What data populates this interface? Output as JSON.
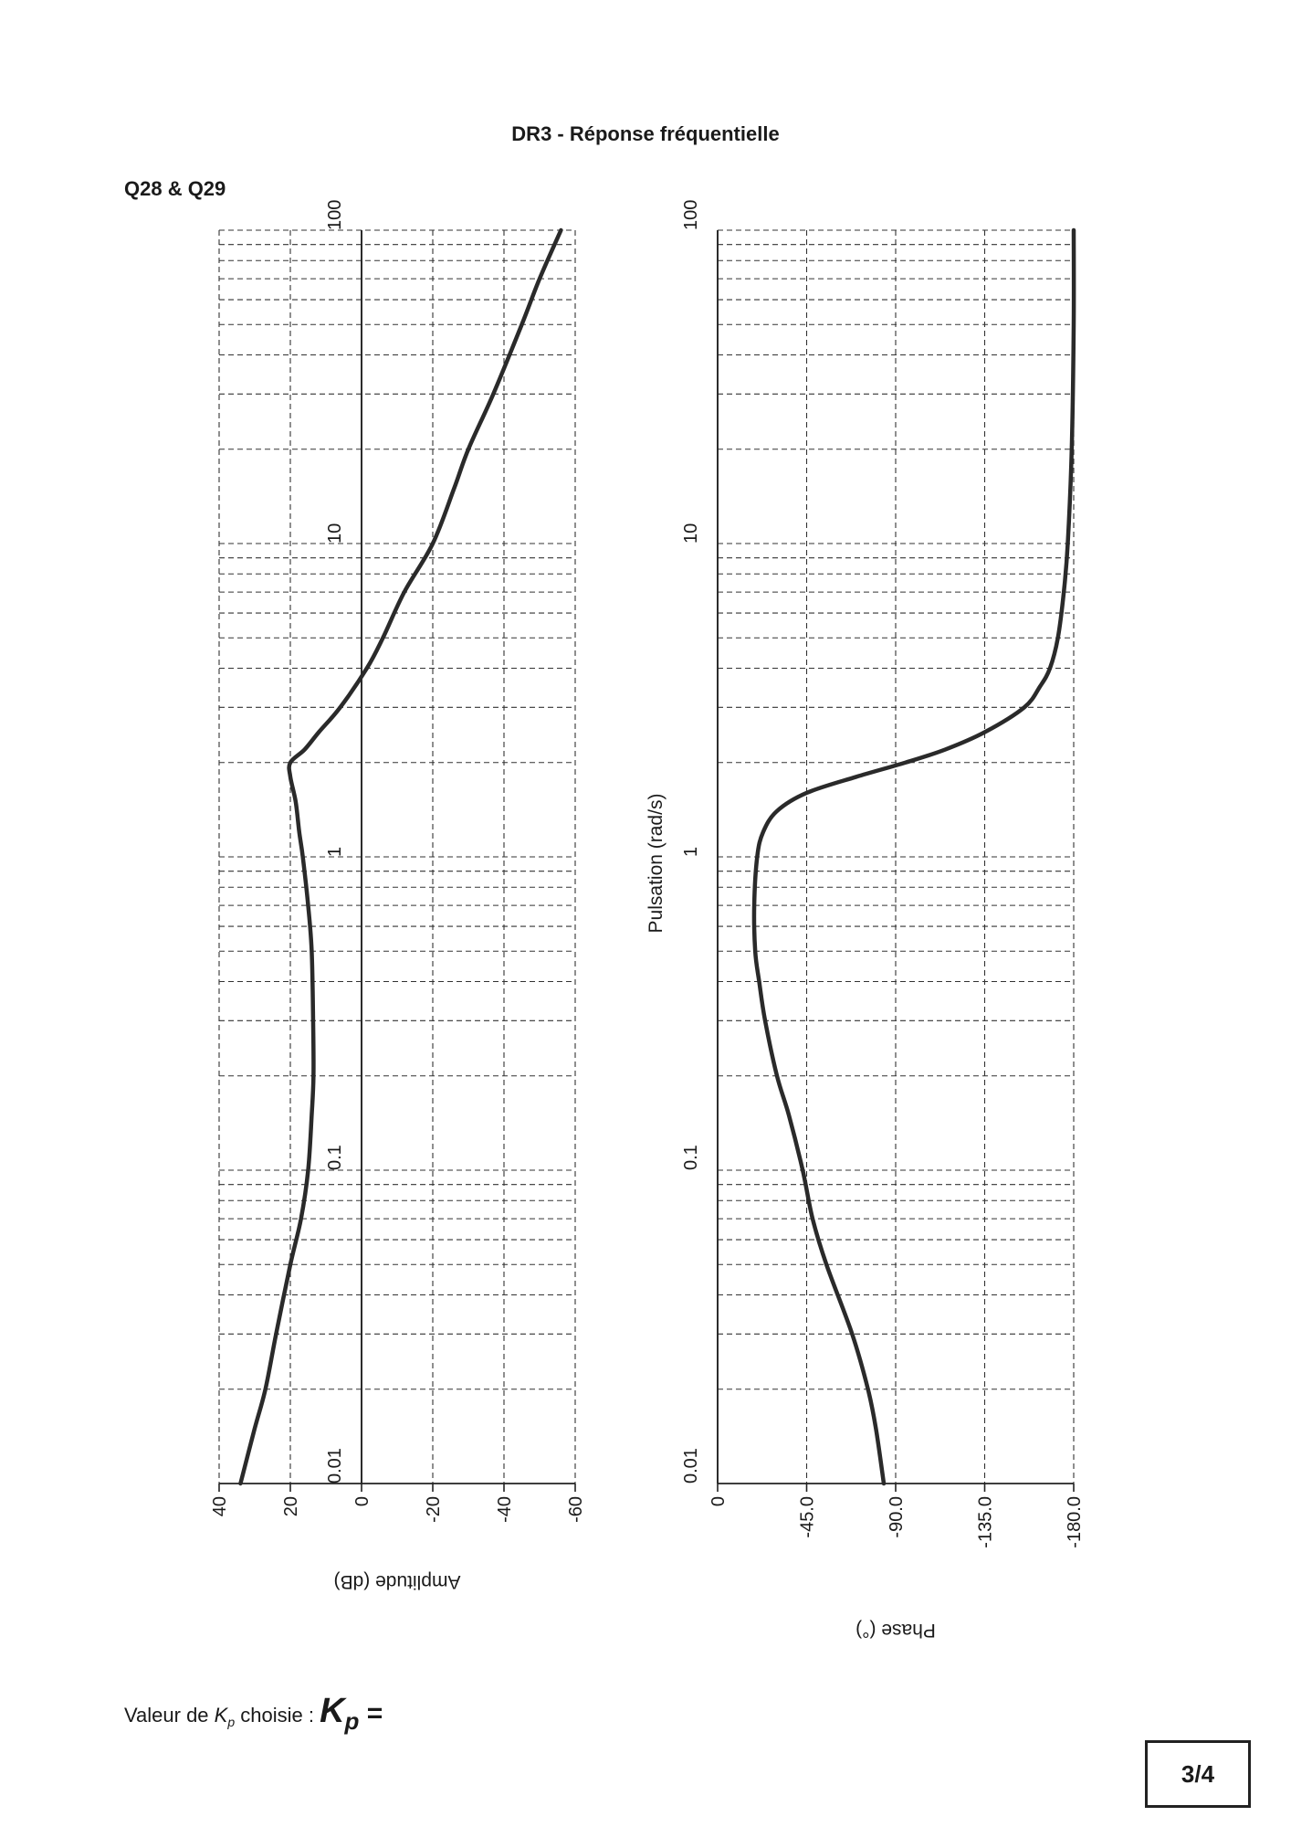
{
  "header": {
    "title": "DR3 - Réponse fréquentielle",
    "question": "Q28 & Q29"
  },
  "footer": {
    "kp_prefix": "Valeur de ",
    "kp_symbol": "K",
    "kp_subscript": "p",
    "kp_suffix": " choisie : ",
    "kp_big_symbol": "K",
    "kp_big_subscript": "p",
    "kp_equals": " =",
    "page_number": "3/4"
  },
  "chart_data": [
    {
      "type": "line",
      "name": "amplitude",
      "orientation": "rotated-90",
      "xscale": "log",
      "xlabel": "",
      "ylabel": "Amplitude (dB)",
      "xlim": [
        0.01,
        100
      ],
      "ylim": [
        40,
        -60
      ],
      "x_ticks": [
        "0.01",
        "0.1",
        "1",
        "10",
        "100"
      ],
      "y_ticks": [
        "40",
        "20",
        "0",
        "-20",
        "-40",
        "-60"
      ],
      "grid": true,
      "series": [
        {
          "x": [
            0.01,
            0.015,
            0.02,
            0.03,
            0.05,
            0.07,
            0.1,
            0.15,
            0.2,
            0.3,
            0.5,
            0.7,
            1.0,
            1.2,
            1.5,
            1.8,
            2.0,
            2.2,
            2.5,
            3.0,
            4.0,
            5.0,
            7.0,
            10,
            15,
            20,
            30,
            50,
            70,
            100
          ],
          "y": [
            34,
            30,
            27,
            24,
            20,
            17,
            15,
            14,
            13.5,
            13.6,
            14,
            15,
            16.5,
            17.5,
            18.5,
            20,
            20,
            16,
            12,
            6,
            -1.5,
            -6,
            -12,
            -20,
            -26,
            -30,
            -37,
            -45,
            -50,
            -56
          ]
        }
      ]
    },
    {
      "type": "line",
      "name": "phase",
      "orientation": "rotated-90",
      "xscale": "log",
      "xlabel": "Pulsation (rad/s)",
      "ylabel": "Phase (°)",
      "xlim": [
        0.01,
        100
      ],
      "ylim": [
        0,
        -180
      ],
      "x_ticks": [
        "0.01",
        "0.1",
        "1",
        "10",
        "100"
      ],
      "y_ticks": [
        "0",
        "-45.0",
        "-90.0",
        "-135.0",
        "-180.0"
      ],
      "grid": true,
      "series": [
        {
          "x": [
            0.01,
            0.015,
            0.02,
            0.03,
            0.05,
            0.07,
            0.1,
            0.15,
            0.2,
            0.3,
            0.4,
            0.5,
            0.7,
            1.0,
            1.2,
            1.4,
            1.6,
            1.8,
            2.0,
            2.2,
            2.5,
            3.0,
            3.5,
            4.0,
            5.0,
            7.0,
            10,
            20,
            50,
            100
          ],
          "y": [
            -84,
            -80,
            -76,
            -68,
            -55,
            -48,
            -43,
            -36,
            -30,
            -24,
            -21,
            -19,
            -18.5,
            -20,
            -23,
            -30,
            -45,
            -70,
            -95,
            -115,
            -135,
            -155,
            -163,
            -168,
            -172,
            -175,
            -177,
            -179,
            -180,
            -180
          ]
        }
      ]
    }
  ]
}
